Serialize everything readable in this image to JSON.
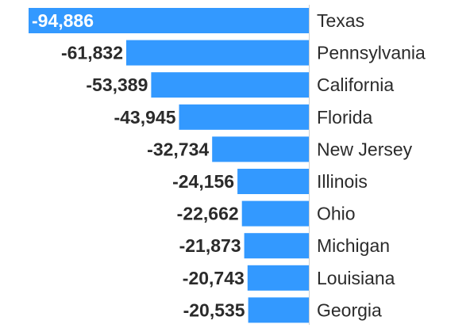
{
  "chart_data": {
    "type": "bar",
    "orientation": "horizontal",
    "categories": [
      "Texas",
      "Pennsylvania",
      "California",
      "Florida",
      "New Jersey",
      "Illinois",
      "Ohio",
      "Michigan",
      "Louisiana",
      "Georgia"
    ],
    "values": [
      -94886,
      -61832,
      -53389,
      -43945,
      -32734,
      -24156,
      -22662,
      -21873,
      -20743,
      -20535
    ],
    "value_labels": [
      "-94,886",
      "-61,832",
      "-53,389",
      "-43,945",
      "-32,734",
      "-24,156",
      "-22,662",
      "-21,873",
      "-20,743",
      "-20,535"
    ],
    "bar_color": "#3399ff",
    "label_color": "#2b2b2b",
    "axis_line_color": "#d0d0d0",
    "grid": false,
    "legend": "none"
  }
}
